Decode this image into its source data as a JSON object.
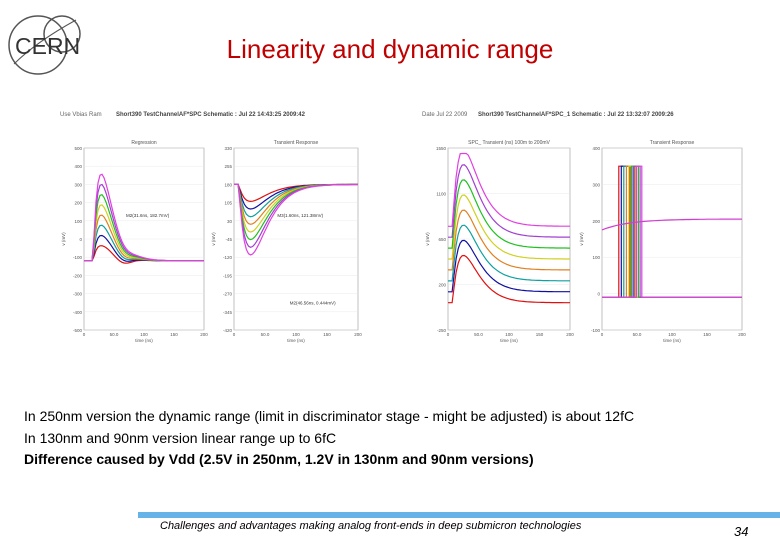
{
  "slide": {
    "logo_text": "CERN",
    "title": "Linearity and dynamic range",
    "body_lines": [
      "In 250nm version the dynamic range (limit in discriminator stage - might be adjusted) is about  12fC",
      "In 130nm and 90nm version linear range up to 6fC",
      "Difference caused by Vdd (2.5V in 250nm, 1.2V in 130nm and 90nm versions)"
    ],
    "footer": "Challenges and advantages making analog front-ends in deep submicron technologies",
    "page_number": "34"
  },
  "screenshots": [
    {
      "header_left": "Use Vbias Ram",
      "header_mid": "Short390 TestChannelAF*SPC Schematic : Jul 22 14:43:25 2009:42",
      "plots": [
        {
          "title": "Regression",
          "y_ticks": [
            "-500",
            "-400",
            "-300",
            "-200",
            "-100",
            "0",
            "100",
            "200",
            "300",
            "400",
            "500"
          ],
          "x_ticks": [
            "0",
            "50.0",
            "100",
            "150",
            "200"
          ],
          "xlabel": "time (ns)",
          "ylabel": "v (mV)",
          "annotation": "M2(31.6ns, 182.7mV)"
        },
        {
          "title": "Transient Response",
          "y_ticks": [
            "-420",
            "-345",
            "-270",
            "-195",
            "-120",
            "-45",
            "30",
            "105",
            "180",
            "255",
            "330"
          ],
          "x_ticks": [
            "0",
            "50.0",
            "100",
            "150",
            "200"
          ],
          "xlabel": "time (ns)",
          "ylabel": "v (mV)",
          "annotations": [
            "M3(1.60ns, 121.38mV)",
            "M2(46.56ns, 0.444mV)"
          ]
        }
      ]
    },
    {
      "header_left": "Date Jul 22 2009",
      "header_mid": "Short390 TestChannelAF*SPC_1 Schematic : Jul 22 13:32:07 2009:26",
      "plots": [
        {
          "title": "SPC_ Transient (ns) 100m to 200mV",
          "y_ticks": [
            "-250",
            "200",
            "650",
            "1100",
            "1550"
          ],
          "x_ticks": [
            "0",
            "50.0",
            "100",
            "150",
            "200"
          ],
          "xlabel": "time (ns)",
          "ylabel": "v (mV)"
        },
        {
          "title": "Transient Response",
          "y_ticks": [
            "-100",
            "0",
            "100",
            "200",
            "300",
            "400"
          ],
          "x_ticks": [
            "0",
            "50.0",
            "100",
            "150",
            "200"
          ],
          "xlabel": "time (ns)",
          "ylabel": "v (mV)"
        }
      ]
    }
  ],
  "colors": {
    "title": "#c00000",
    "footer_bar": "#66b3e8",
    "curves": [
      "#e01010",
      "#1010a0",
      "#10a0a0",
      "#e08020",
      "#d0d020",
      "#20c020",
      "#a040d0",
      "#e040e0"
    ]
  }
}
